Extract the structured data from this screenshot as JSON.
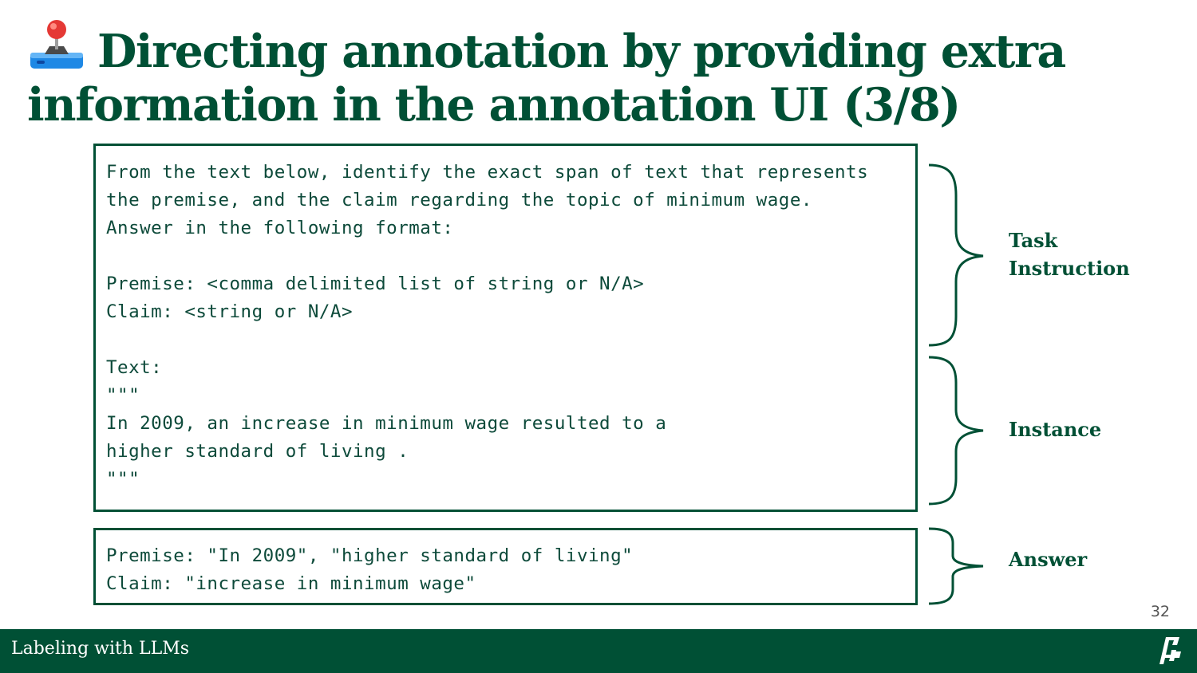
{
  "slide": {
    "title": "Directing annotation by providing extra information in the annotation UI (3/8)",
    "title_icon": "joystick-icon",
    "page_number": "32"
  },
  "prompt_box": {
    "text": "From the text below, identify the exact span of text that represents\nthe premise, and the claim regarding the topic of minimum wage.\nAnswer in the following format:\n\nPremise: <comma delimited list of string or N/A>\nClaim: <string or N/A>\n\nText:\n\"\"\"\nIn 2009, an increase in minimum wage resulted to a\nhigher standard of living .\n\"\"\""
  },
  "answer_box": {
    "text": "Premise: \"In 2009\", \"higher standard of living\"\nClaim: \"increase in minimum wage\""
  },
  "labels": {
    "task_instruction": "Task\nInstruction",
    "instance": "Instance",
    "answer": "Answer"
  },
  "footer": {
    "text": "Labeling with LLMs",
    "logo_icon": "university-logo-icon"
  },
  "colors": {
    "brand_green": "#005035",
    "text_green": "#0d4a3a",
    "footer_text": "#ffffff"
  }
}
